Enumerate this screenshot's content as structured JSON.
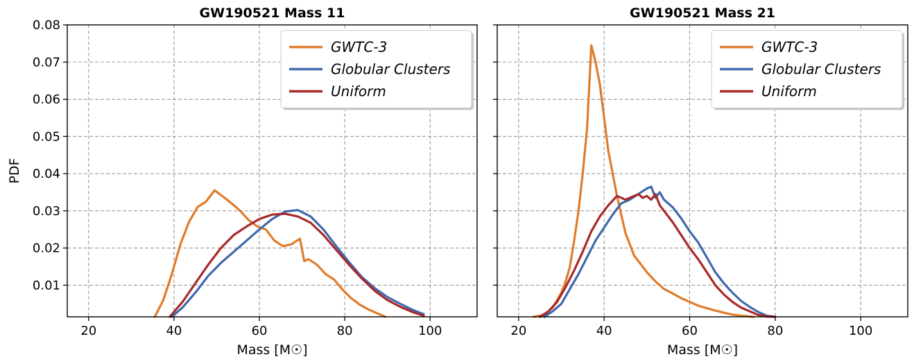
{
  "colors": {
    "gwtc3": "#E07B2A",
    "globular": "#3F68AB",
    "uniform": "#A9282A",
    "grid": "#9a9a9a"
  },
  "chart_data": [
    {
      "type": "line",
      "title": "GW190521 Mass 11",
      "xlabel": "Mass [M☉]",
      "ylabel": "PDF",
      "xlim": [
        15,
        111
      ],
      "ylim": [
        0.0015,
        0.08
      ],
      "xticks": [
        20,
        40,
        60,
        80,
        100
      ],
      "yticks": [
        0.01,
        0.02,
        0.03,
        0.04,
        0.05,
        0.06,
        0.07,
        0.08
      ],
      "ytick_labels": [
        "0.01",
        "0.02",
        "0.03",
        "0.04",
        "0.05",
        "0.06",
        "0.07",
        "0.08"
      ],
      "grid": true,
      "legend_position": "top-right",
      "series": [
        {
          "name": "GWTC-3",
          "color_key": "gwtc3",
          "x": [
            35.5,
            37.5,
            39.5,
            41.5,
            43.5,
            45.5,
            47.5,
            49.5,
            51.5,
            53.5,
            55.5,
            57.5,
            59.5,
            61.5,
            63.5,
            65.5,
            67.5,
            69.5,
            70.5,
            71.5,
            73.5,
            75.5,
            77.5,
            79.5,
            81.5,
            83.5,
            85.5,
            87.5,
            89.5
          ],
          "y": [
            0.0015,
            0.006,
            0.013,
            0.021,
            0.027,
            0.031,
            0.0325,
            0.0355,
            0.0338,
            0.032,
            0.03,
            0.0275,
            0.0258,
            0.025,
            0.022,
            0.0205,
            0.021,
            0.0225,
            0.0165,
            0.017,
            0.0155,
            0.013,
            0.0115,
            0.0088,
            0.0065,
            0.0048,
            0.0035,
            0.0025,
            0.0015
          ]
        },
        {
          "name": "Globular Clusters",
          "color_key": "globular",
          "x": [
            39.5,
            42,
            45,
            48,
            51,
            54,
            57,
            60,
            63,
            66,
            69,
            72,
            75,
            78,
            81,
            84,
            87,
            90,
            93,
            96,
            98.5
          ],
          "y": [
            0.0015,
            0.004,
            0.008,
            0.0125,
            0.016,
            0.019,
            0.022,
            0.025,
            0.0278,
            0.0298,
            0.0302,
            0.0285,
            0.025,
            0.0205,
            0.0162,
            0.0122,
            0.0092,
            0.0068,
            0.005,
            0.0033,
            0.0022
          ]
        },
        {
          "name": "Uniform",
          "color_key": "uniform",
          "x": [
            39,
            42,
            45,
            48,
            51,
            54,
            57,
            60,
            63,
            66,
            69,
            72,
            75,
            78,
            81,
            84,
            87,
            90,
            93,
            96,
            98.5
          ],
          "y": [
            0.0015,
            0.0055,
            0.0105,
            0.0155,
            0.02,
            0.0235,
            0.0258,
            0.0278,
            0.029,
            0.0292,
            0.0285,
            0.0268,
            0.0235,
            0.0195,
            0.0155,
            0.0118,
            0.0085,
            0.006,
            0.0042,
            0.0027,
            0.0018
          ]
        }
      ]
    },
    {
      "type": "line",
      "title": "GW190521 Mass 21",
      "xlabel": "Mass [M☉]",
      "ylabel": "",
      "xlim": [
        15,
        111
      ],
      "ylim": [
        0.0015,
        0.08
      ],
      "xticks": [
        20,
        40,
        60,
        80,
        100
      ],
      "yticks": [
        0.01,
        0.02,
        0.03,
        0.04,
        0.05,
        0.06,
        0.07,
        0.08
      ],
      "ytick_labels": [],
      "grid": true,
      "legend_position": "top-right",
      "series": [
        {
          "name": "GWTC-3",
          "color_key": "gwtc3",
          "x": [
            23.5,
            26,
            28,
            30,
            31,
            32,
            33,
            34,
            35,
            36,
            37,
            38,
            39,
            40,
            41,
            42,
            43,
            44,
            45,
            46,
            47,
            48,
            50,
            52,
            54,
            56,
            58,
            60,
            62,
            64,
            66,
            68,
            70,
            72,
            74,
            75
          ],
          "y": [
            0.0015,
            0.002,
            0.004,
            0.008,
            0.011,
            0.015,
            0.022,
            0.03,
            0.04,
            0.052,
            0.0745,
            0.07,
            0.064,
            0.055,
            0.046,
            0.04,
            0.034,
            0.029,
            0.024,
            0.021,
            0.018,
            0.0165,
            0.0135,
            0.011,
            0.009,
            0.0078,
            0.0065,
            0.0055,
            0.0045,
            0.0038,
            0.0032,
            0.0026,
            0.0021,
            0.0018,
            0.0016,
            0.0015
          ]
        },
        {
          "name": "Globular Clusters",
          "color_key": "globular",
          "x": [
            26,
            28,
            30,
            32,
            34,
            36,
            38,
            40,
            42,
            44,
            46,
            48,
            50,
            51,
            52,
            53,
            54,
            56,
            58,
            60,
            62,
            64,
            66,
            68,
            70,
            72,
            74,
            76,
            78,
            80
          ],
          "y": [
            0.0015,
            0.003,
            0.005,
            0.009,
            0.013,
            0.0175,
            0.022,
            0.0255,
            0.029,
            0.032,
            0.033,
            0.0345,
            0.036,
            0.0365,
            0.0335,
            0.035,
            0.033,
            0.031,
            0.028,
            0.0245,
            0.0215,
            0.0175,
            0.0135,
            0.0105,
            0.008,
            0.0058,
            0.0042,
            0.0028,
            0.0018,
            0.0015
          ]
        },
        {
          "name": "Uniform",
          "color_key": "uniform",
          "x": [
            25,
            27,
            29,
            31,
            33,
            35,
            37,
            39,
            41,
            43,
            45,
            47,
            48,
            49,
            50,
            51,
            52,
            53,
            54,
            56,
            58,
            60,
            62,
            64,
            66,
            68,
            70,
            72,
            74,
            76,
            78,
            80
          ],
          "y": [
            0.0015,
            0.003,
            0.0055,
            0.0095,
            0.014,
            0.019,
            0.0245,
            0.0285,
            0.0315,
            0.034,
            0.033,
            0.034,
            0.0345,
            0.0335,
            0.034,
            0.033,
            0.0345,
            0.0315,
            0.03,
            0.027,
            0.0235,
            0.02,
            0.017,
            0.0135,
            0.01,
            0.0075,
            0.0055,
            0.004,
            0.003,
            0.002,
            0.0016,
            0.0015
          ]
        }
      ]
    }
  ]
}
